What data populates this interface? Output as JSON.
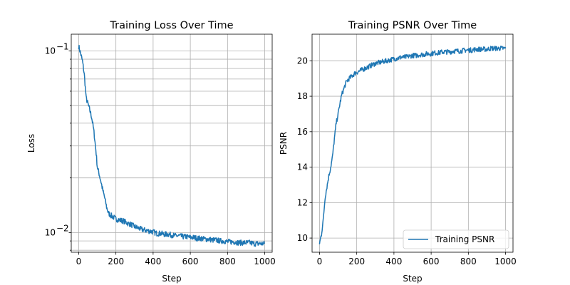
{
  "colors": {
    "series": "#1f77b4",
    "grid": "#b0b0b0"
  },
  "chart_data": [
    {
      "type": "line",
      "title": "Training Loss Over Time",
      "xlabel": "Step",
      "ylabel": "Loss",
      "xlim": [
        -40,
        1040
      ],
      "ylim": [
        0.0078,
        0.1235
      ],
      "yscale": "log",
      "grid": true,
      "legend": "none",
      "x_ticks": [
        {
          "value": 0,
          "label": "0"
        },
        {
          "value": 200,
          "label": "200"
        },
        {
          "value": 400,
          "label": "400"
        },
        {
          "value": 600,
          "label": "600"
        },
        {
          "value": 800,
          "label": "800"
        },
        {
          "value": 1000,
          "label": "1000"
        }
      ],
      "y_major_ticks": [
        {
          "value": 0.01,
          "label": "10",
          "exp": "−2"
        },
        {
          "value": 0.1,
          "label": "10",
          "exp": "−1"
        }
      ],
      "y_minor_ticks": [
        0.008,
        0.009,
        0.02,
        0.03,
        0.04,
        0.05,
        0.06,
        0.07,
        0.08,
        0.09
      ],
      "series": [
        {
          "points": [
            [
              0,
              0.106
            ],
            [
              10,
              0.097
            ],
            [
              20,
              0.088
            ],
            [
              30,
              0.074
            ],
            [
              40,
              0.055
            ],
            [
              50,
              0.051
            ],
            [
              60,
              0.047
            ],
            [
              70,
              0.043
            ],
            [
              80,
              0.037
            ],
            [
              90,
              0.03
            ],
            [
              100,
              0.023
            ],
            [
              110,
              0.021
            ],
            [
              120,
              0.019
            ],
            [
              130,
              0.017
            ],
            [
              140,
              0.0155
            ],
            [
              150,
              0.0138
            ],
            [
              160,
              0.0128
            ],
            [
              170,
              0.0125
            ],
            [
              180,
              0.0123
            ],
            [
              190,
              0.0121
            ],
            [
              200,
              0.0119
            ],
            [
              220,
              0.0117
            ],
            [
              240,
              0.0116
            ],
            [
              260,
              0.0113
            ],
            [
              280,
              0.0111
            ],
            [
              300,
              0.0108
            ],
            [
              320,
              0.0106
            ],
            [
              340,
              0.0104
            ],
            [
              360,
              0.0103
            ],
            [
              380,
              0.0102
            ],
            [
              400,
              0.0101
            ],
            [
              420,
              0.0099
            ],
            [
              440,
              0.0099
            ],
            [
              460,
              0.0098
            ],
            [
              480,
              0.0098
            ],
            [
              500,
              0.0097
            ],
            [
              520,
              0.0096
            ],
            [
              540,
              0.0096
            ],
            [
              560,
              0.0095
            ],
            [
              580,
              0.0095
            ],
            [
              600,
              0.0094
            ],
            [
              620,
              0.0094
            ],
            [
              640,
              0.0093
            ],
            [
              660,
              0.0093
            ],
            [
              680,
              0.0092
            ],
            [
              700,
              0.0092
            ],
            [
              720,
              0.0091
            ],
            [
              740,
              0.0091
            ],
            [
              760,
              0.009
            ],
            [
              780,
              0.009
            ],
            [
              800,
              0.0089
            ],
            [
              820,
              0.0089
            ],
            [
              840,
              0.0089
            ],
            [
              860,
              0.0088
            ],
            [
              880,
              0.0088
            ],
            [
              900,
              0.0088
            ],
            [
              920,
              0.0088
            ],
            [
              940,
              0.0087
            ],
            [
              960,
              0.0087
            ],
            [
              980,
              0.0087
            ],
            [
              1000,
              0.0087
            ]
          ]
        }
      ]
    },
    {
      "type": "line",
      "title": "Training PSNR Over Time",
      "xlabel": "Step",
      "ylabel": "PSNR",
      "xlim": [
        -40,
        1040
      ],
      "ylim": [
        9.2,
        21.5
      ],
      "yscale": "linear",
      "grid": true,
      "legend": "lower-right",
      "x_ticks": [
        {
          "value": 0,
          "label": "0"
        },
        {
          "value": 200,
          "label": "200"
        },
        {
          "value": 400,
          "label": "400"
        },
        {
          "value": 600,
          "label": "600"
        },
        {
          "value": 800,
          "label": "800"
        },
        {
          "value": 1000,
          "label": "1000"
        }
      ],
      "y_ticks": [
        {
          "value": 10,
          "label": "10"
        },
        {
          "value": 12,
          "label": "12"
        },
        {
          "value": 14,
          "label": "14"
        },
        {
          "value": 16,
          "label": "16"
        },
        {
          "value": 18,
          "label": "18"
        },
        {
          "value": 20,
          "label": "20"
        }
      ],
      "series": [
        {
          "name": "Training PSNR",
          "points": [
            [
              0,
              9.7
            ],
            [
              10,
              10.2
            ],
            [
              20,
              11.0
            ],
            [
              30,
              12.3
            ],
            [
              40,
              12.9
            ],
            [
              50,
              13.5
            ],
            [
              60,
              14.0
            ],
            [
              70,
              14.6
            ],
            [
              80,
              15.6
            ],
            [
              90,
              16.5
            ],
            [
              100,
              17.0
            ],
            [
              110,
              17.6
            ],
            [
              120,
              18.1
            ],
            [
              130,
              18.4
            ],
            [
              140,
              18.7
            ],
            [
              150,
              18.9
            ],
            [
              160,
              19.0
            ],
            [
              170,
              19.1
            ],
            [
              180,
              19.2
            ],
            [
              190,
              19.3
            ],
            [
              200,
              19.35
            ],
            [
              220,
              19.45
            ],
            [
              240,
              19.55
            ],
            [
              260,
              19.65
            ],
            [
              280,
              19.75
            ],
            [
              300,
              19.85
            ],
            [
              320,
              19.9
            ],
            [
              340,
              19.95
            ],
            [
              360,
              20.0
            ],
            [
              380,
              20.05
            ],
            [
              400,
              20.1
            ],
            [
              420,
              20.15
            ],
            [
              440,
              20.2
            ],
            [
              460,
              20.2
            ],
            [
              480,
              20.25
            ],
            [
              500,
              20.3
            ],
            [
              520,
              20.3
            ],
            [
              540,
              20.35
            ],
            [
              560,
              20.35
            ],
            [
              580,
              20.4
            ],
            [
              600,
              20.4
            ],
            [
              620,
              20.45
            ],
            [
              640,
              20.45
            ],
            [
              660,
              20.5
            ],
            [
              680,
              20.5
            ],
            [
              700,
              20.5
            ],
            [
              720,
              20.55
            ],
            [
              740,
              20.55
            ],
            [
              760,
              20.55
            ],
            [
              780,
              20.6
            ],
            [
              800,
              20.6
            ],
            [
              820,
              20.6
            ],
            [
              840,
              20.65
            ],
            [
              860,
              20.65
            ],
            [
              880,
              20.65
            ],
            [
              900,
              20.65
            ],
            [
              920,
              20.7
            ],
            [
              940,
              20.7
            ],
            [
              960,
              20.7
            ],
            [
              980,
              20.7
            ],
            [
              1000,
              20.7
            ]
          ]
        }
      ]
    }
  ]
}
